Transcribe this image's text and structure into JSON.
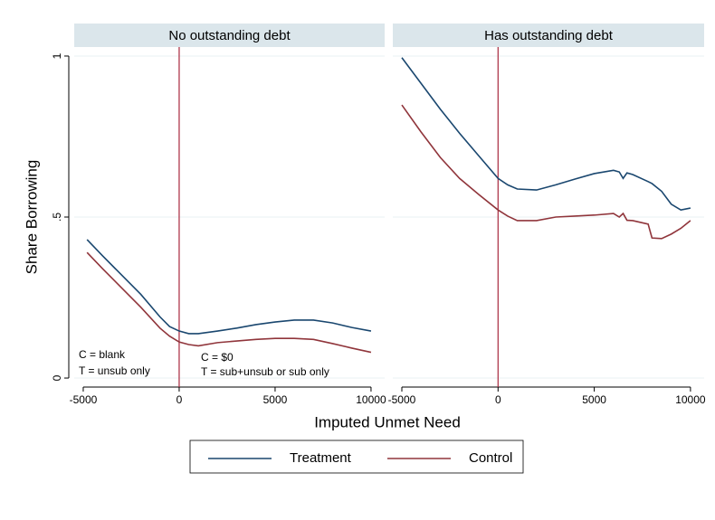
{
  "axis_titles": {
    "x": "Imputed Unmet Need",
    "y": "Share Borrowing"
  },
  "chart_data": [
    {
      "type": "line",
      "title": "No outstanding debt",
      "x": [
        -4800,
        -4000,
        -3000,
        -2000,
        -1000,
        -500,
        0,
        500,
        1000,
        2000,
        3000,
        4000,
        5000,
        6000,
        7000,
        8000,
        9000,
        10000
      ],
      "series": [
        {
          "name": "Treatment",
          "color": "#1a476f",
          "values": [
            0.43,
            0.38,
            0.32,
            0.26,
            0.19,
            0.16,
            0.146,
            0.138,
            0.138,
            0.146,
            0.155,
            0.166,
            0.174,
            0.18,
            0.18,
            0.171,
            0.157,
            0.146
          ]
        },
        {
          "name": "Control",
          "color": "#90353b",
          "values": [
            0.39,
            0.34,
            0.28,
            0.22,
            0.155,
            0.13,
            0.112,
            0.104,
            0.1,
            0.11,
            0.115,
            0.12,
            0.123,
            0.123,
            0.12,
            0.107,
            0.093,
            0.08
          ]
        }
      ],
      "xlim": [
        -5470,
        10710
      ],
      "xticks": [
        -5000,
        0,
        5000,
        10000
      ],
      "ylim": [
        -0.028,
        1.028
      ],
      "yticks": [
        0,
        {
          "value": 0.5,
          "label": ".5"
        },
        1
      ],
      "grid": true,
      "vline": {
        "value": 0,
        "color": "#a8283e"
      },
      "annotations": [
        "C = blank",
        "T = unsub only",
        "C = $0",
        "T = sub+unsub or sub only"
      ]
    },
    {
      "type": "line",
      "title": "Has outstanding debt",
      "x": [
        -5000,
        -4000,
        -3000,
        -2000,
        -1000,
        0,
        500,
        1000,
        2000,
        3000,
        4000,
        5000,
        6000,
        6300,
        6500,
        6700,
        7000,
        7800,
        8000,
        8500,
        9000,
        9500,
        10000
      ],
      "series": [
        {
          "name": "Treatment",
          "color": "#1a476f",
          "values": [
            0.995,
            0.915,
            0.835,
            0.76,
            0.69,
            0.62,
            0.6,
            0.587,
            0.584,
            0.6,
            0.618,
            0.635,
            0.645,
            0.64,
            0.62,
            0.637,
            0.632,
            0.61,
            0.604,
            0.58,
            0.54,
            0.522,
            0.528
          ]
        },
        {
          "name": "Control",
          "color": "#90353b",
          "values": [
            0.848,
            0.764,
            0.685,
            0.62,
            0.57,
            0.522,
            0.503,
            0.489,
            0.489,
            0.5,
            0.503,
            0.506,
            0.511,
            0.5,
            0.511,
            0.49,
            0.489,
            0.478,
            0.435,
            0.433,
            0.447,
            0.465,
            0.489
          ]
        }
      ],
      "xlim": [
        -5470,
        10710
      ],
      "xticks": [
        -5000,
        0,
        5000,
        10000
      ],
      "ylim": [
        -0.028,
        1.028
      ],
      "yticks": [
        0,
        {
          "value": 0.5,
          "label": ".5"
        },
        1
      ],
      "grid": true,
      "vline": {
        "value": 0,
        "color": "#a8283e"
      }
    }
  ]
}
